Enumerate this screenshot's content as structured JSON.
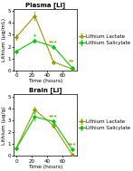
{
  "chart_data": [
    {
      "type": "line",
      "title": "Plasma [Li]",
      "x_label": "Time (hours)",
      "y_label": "Lithium (µg/mL)",
      "x": [
        0,
        24,
        48,
        72
      ],
      "xlim": [
        -3,
        78
      ],
      "xticks": [
        0,
        20,
        40,
        60
      ],
      "ylim": [
        0,
        5.2
      ],
      "yticks": [
        0,
        1,
        2,
        3,
        4,
        5
      ],
      "marker": "diamond",
      "legend": "right",
      "series": [
        {
          "name": "Lithium Lactate",
          "color": "#999900",
          "values": [
            2.8,
            4.6,
            0.7,
            0.12
          ],
          "yerr": [
            0.25,
            0.35,
            0.1,
            0.04
          ]
        },
        {
          "name": "Lithium Salicylate",
          "color": "#00cc00",
          "values": [
            1.6,
            2.5,
            2.0,
            0.22
          ],
          "yerr": [
            0.12,
            0.18,
            0.15,
            0.05
          ]
        }
      ],
      "annotations": [
        {
          "x": 24,
          "y": 2.75,
          "text": "*",
          "color": "#00cc00"
        },
        {
          "x": 48,
          "y": 2.2,
          "text": "***",
          "color": "#999900"
        },
        {
          "x": 72,
          "y": 0.55,
          "text": "**",
          "color": "#999900"
        }
      ]
    },
    {
      "type": "line",
      "title": "Brain [Li]",
      "x_label": "Time (hours)",
      "y_label": "Lithium (µg/g)",
      "x": [
        0,
        24,
        48,
        72
      ],
      "xlim": [
        -3,
        78
      ],
      "xticks": [
        0,
        20,
        40,
        60
      ],
      "ylim": [
        0,
        5.2
      ],
      "yticks": [
        0,
        1,
        2,
        3,
        4,
        5
      ],
      "marker": "diamond",
      "legend": "right",
      "series": [
        {
          "name": "Lithium Lactate",
          "color": "#999900",
          "values": [
            0.65,
            3.9,
            2.55,
            0.12
          ],
          "yerr": [
            0.08,
            0.22,
            0.18,
            0.04
          ]
        },
        {
          "name": "Lithium Salicylate",
          "color": "#00cc00",
          "values": [
            0.6,
            3.3,
            2.9,
            0.55
          ],
          "yerr": [
            0.08,
            0.28,
            0.18,
            0.07
          ]
        }
      ],
      "annotations": [
        {
          "x": 24,
          "y": 3.55,
          "text": "*",
          "color": "#00cc00"
        },
        {
          "x": 48,
          "y": 3.15,
          "text": "***",
          "color": "#999900"
        },
        {
          "x": 72,
          "y": 0.75,
          "text": "***",
          "color": "#999900"
        }
      ]
    }
  ]
}
